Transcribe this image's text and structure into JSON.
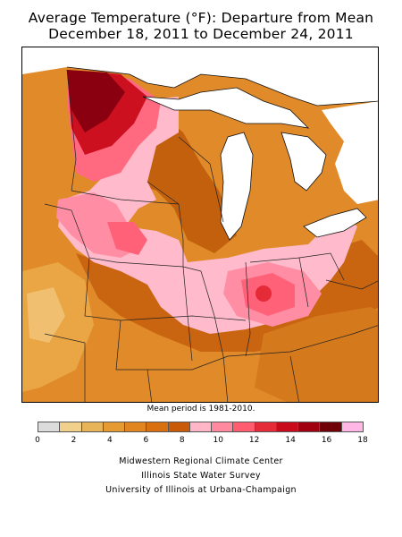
{
  "title_line1": "Average Temperature (°F): Departure from Mean",
  "title_line2": "December 18, 2011 to December 24, 2011",
  "mean_period_note": "Mean period is 1981-2010.",
  "legend": {
    "colors": [
      "#dcdcdc",
      "#f0d08a",
      "#e8b45a",
      "#e59a32",
      "#e08520",
      "#d8700f",
      "#c85a08",
      "#ffb7c8",
      "#ff8aa0",
      "#ff5c70",
      "#e52a38",
      "#c80a1a",
      "#a00010",
      "#700008",
      "#ffb7e6"
    ],
    "tick_labels": [
      "0",
      "2",
      "4",
      "6",
      "8",
      "10",
      "12",
      "14",
      "16",
      "18"
    ],
    "tick_values": [
      0,
      2,
      4,
      6,
      8,
      10,
      12,
      14,
      16,
      18
    ]
  },
  "credits": {
    "line1": "Midwestern Regional Climate Center",
    "line2": "Illinois State Water Survey",
    "line3": "University of Illinois at Urbana-Champaign"
  }
}
